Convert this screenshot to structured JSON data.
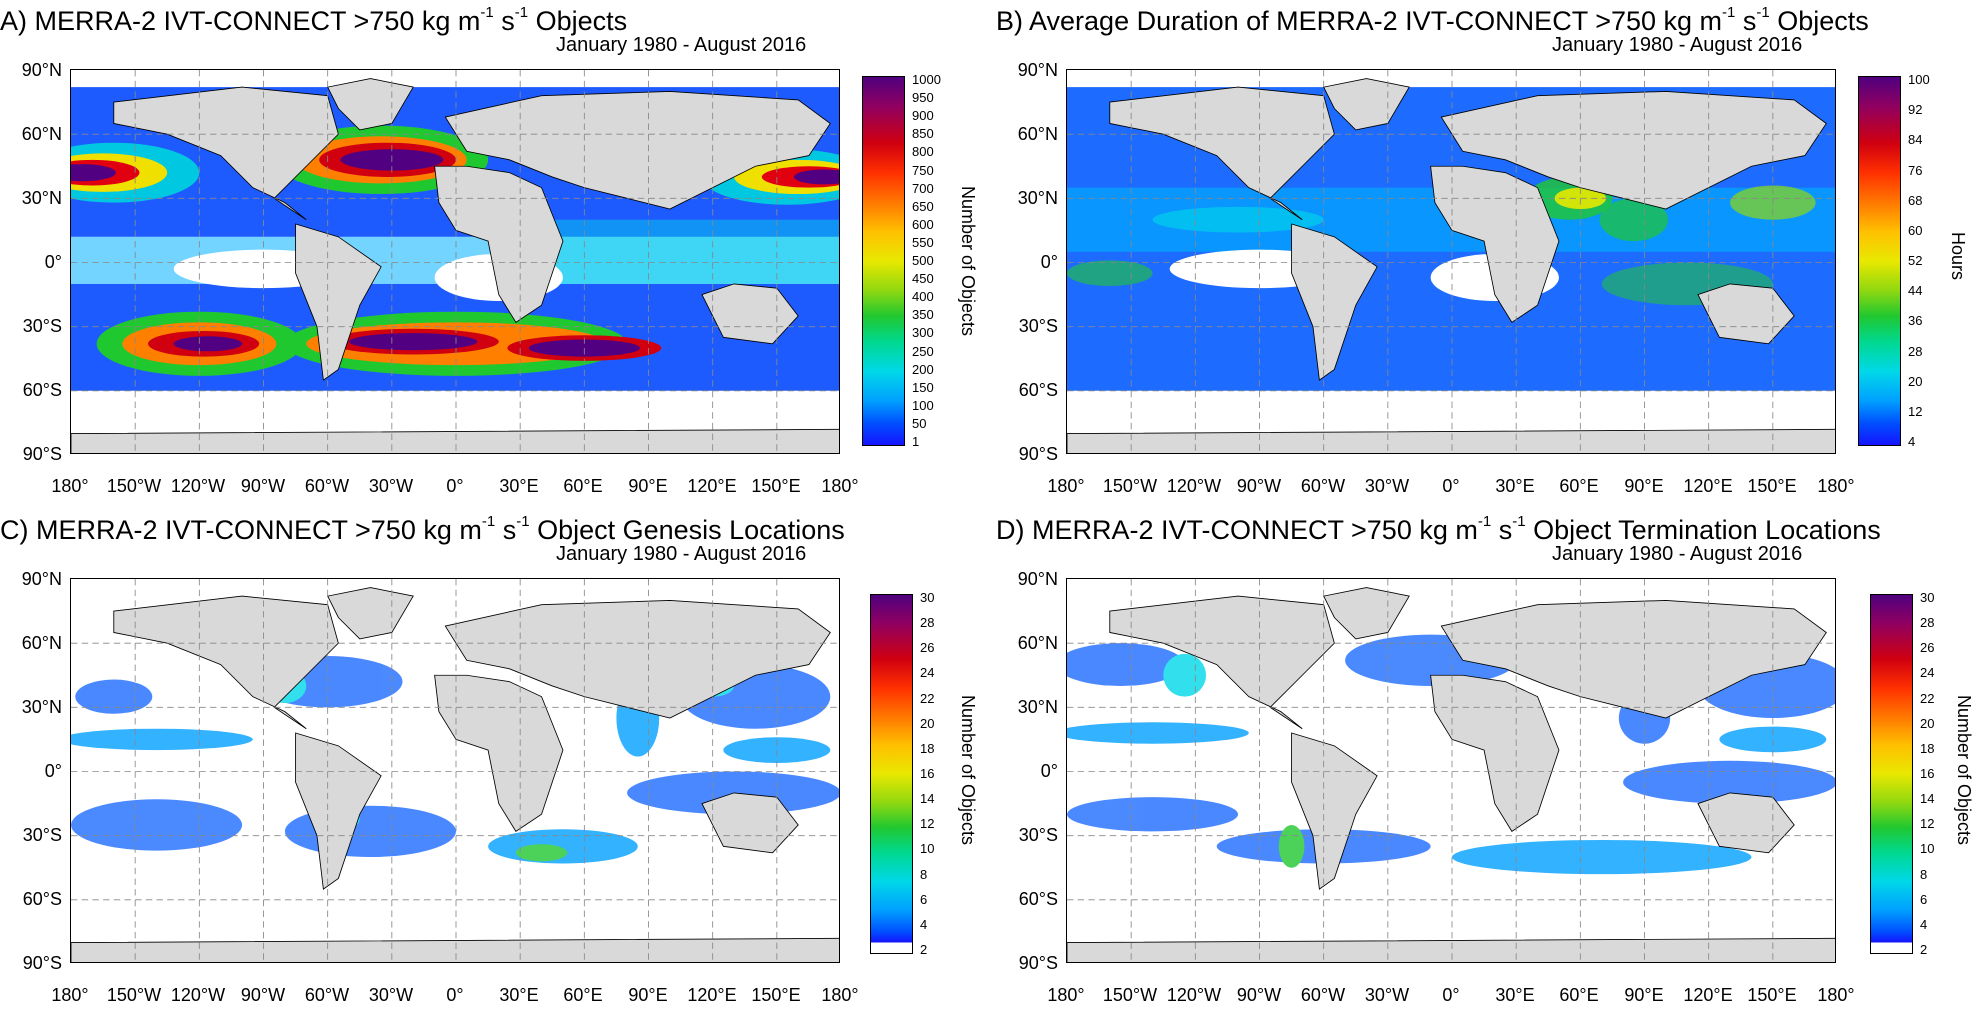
{
  "shared": {
    "period": "January 1980 - August 2016",
    "lat_labels": [
      "90°N",
      "60°N",
      "30°N",
      "0°",
      "30°S",
      "60°S",
      "90°S"
    ],
    "lon_labels": [
      "180°",
      "150°W",
      "120°W",
      "90°W",
      "60°W",
      "30°W",
      "0°",
      "30°E",
      "60°E",
      "90°E",
      "120°E",
      "150°E",
      "180°"
    ]
  },
  "panels": [
    {
      "id": "A",
      "title_prefix": "A)  MERRA-2 IVT-CONNECT >750 kg m",
      "title_exp1": "-1",
      "title_mid": " s",
      "title_exp2": "-1",
      "title_suffix": " Objects",
      "colorbar_title": "Number of Objects",
      "colorbar_labels": [
        "1000",
        "950",
        "900",
        "850",
        "800",
        "750",
        "700",
        "650",
        "600",
        "550",
        "500",
        "450",
        "400",
        "350",
        "300",
        "250",
        "200",
        "150",
        "100",
        "50",
        "1"
      ]
    },
    {
      "id": "B",
      "title_prefix": "B)  Average Duration of MERRA-2 IVT-CONNECT >750 kg m",
      "title_exp1": "-1",
      "title_mid": " s",
      "title_exp2": "-1",
      "title_suffix": " Objects",
      "colorbar_title": "Hours",
      "colorbar_labels": [
        "100",
        "92",
        "84",
        "76",
        "68",
        "60",
        "52",
        "44",
        "36",
        "28",
        "20",
        "12",
        "4"
      ]
    },
    {
      "id": "C",
      "title_prefix": "C)  MERRA-2 IVT-CONNECT >750 kg m",
      "title_exp1": "-1",
      "title_mid": " s",
      "title_exp2": "-1",
      "title_suffix": " Object Genesis Locations",
      "colorbar_title": "Number of Objects",
      "colorbar_labels": [
        "30",
        "28",
        "26",
        "24",
        "22",
        "20",
        "18",
        "16",
        "14",
        "12",
        "10",
        "8",
        "6",
        "4",
        "2"
      ]
    },
    {
      "id": "D",
      "title_prefix": "D)  MERRA-2 IVT-CONNECT >750 kg m",
      "title_exp1": "-1",
      "title_mid": " s",
      "title_exp2": "-1",
      "title_suffix": " Object Termination Locations",
      "colorbar_title": "Number of Objects",
      "colorbar_labels": [
        "30",
        "28",
        "26",
        "24",
        "22",
        "20",
        "18",
        "16",
        "14",
        "12",
        "10",
        "8",
        "6",
        "4",
        "2"
      ]
    }
  ],
  "colors": {
    "land": "#d9d9d9",
    "ocean": "#ffffff",
    "scale": [
      "#1414ff",
      "#0050ff",
      "#00a0ff",
      "#00d8e8",
      "#00d890",
      "#20c830",
      "#90d810",
      "#e8e800",
      "#ffc000",
      "#ff8000",
      "#ff3000",
      "#d00010",
      "#900060",
      "#500080"
    ]
  }
}
